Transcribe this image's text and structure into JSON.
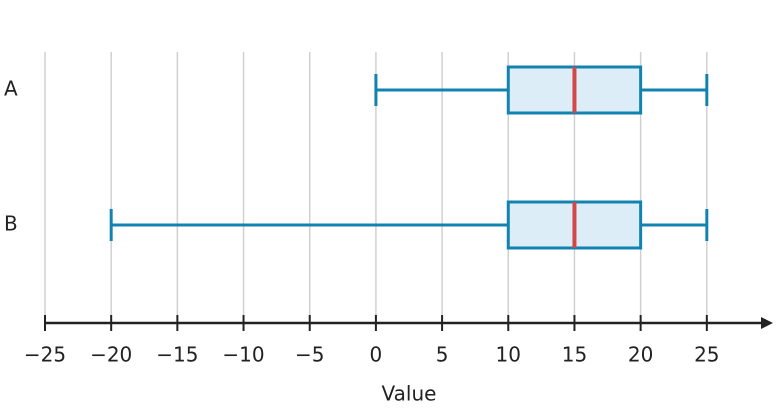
{
  "chart_data": {
    "type": "boxplot",
    "x_label": "Value",
    "categories": [
      "A",
      "B"
    ],
    "boxes": [
      {
        "min": 0,
        "q1": 10,
        "median": 15,
        "q3": 20,
        "max": 25
      },
      {
        "min": -20,
        "q1": 10,
        "median": 15,
        "q3": 20,
        "max": 25
      }
    ],
    "box_color": "#1283b0",
    "box_fill": "#ddedf8",
    "median_color": "#d24747",
    "xlim": [
      -25,
      30
    ],
    "xticks": [
      {
        "value": -25,
        "label": "−25"
      },
      {
        "value": -20,
        "label": "−20"
      },
      {
        "value": -15,
        "label": "−15"
      },
      {
        "value": -10,
        "label": "−10"
      },
      {
        "value": -5,
        "label": "−5"
      },
      0,
      5,
      10,
      15,
      20,
      25
    ],
    "grid": true
  }
}
